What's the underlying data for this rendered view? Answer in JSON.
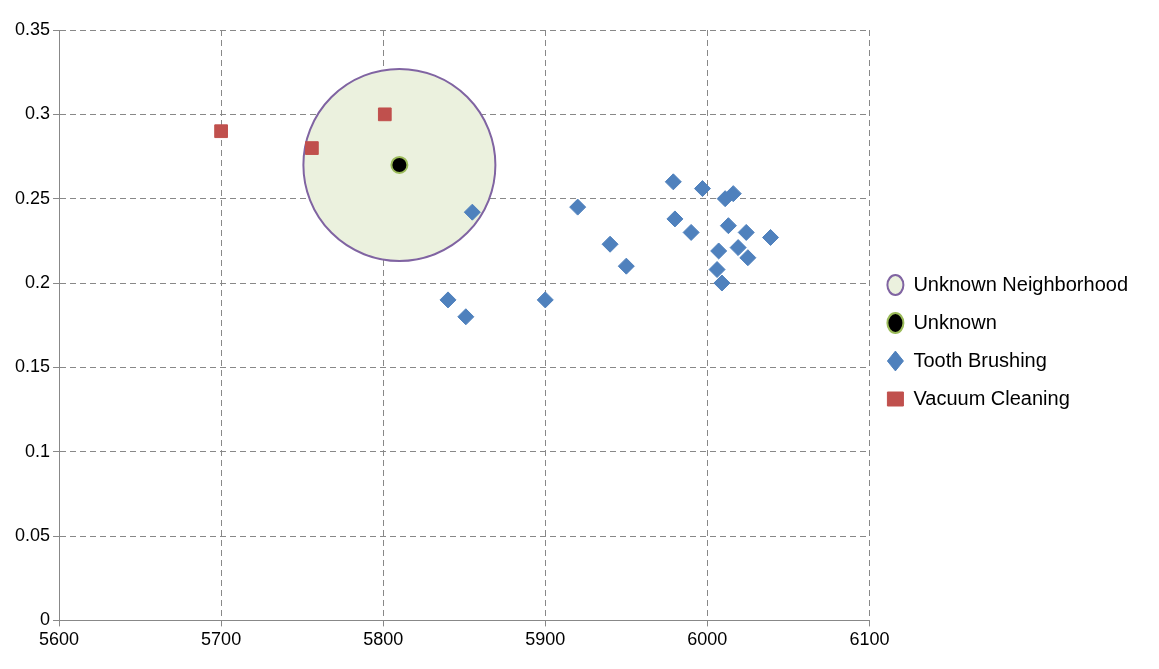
{
  "chart_data": {
    "type": "scatter",
    "xlim": [
      5600,
      6100
    ],
    "xticks": [
      5600,
      5700,
      5800,
      5900,
      6000,
      6100
    ],
    "ylim": [
      0,
      0.35
    ],
    "yticks": [
      0,
      0.05,
      0.1,
      0.15,
      0.2,
      0.25,
      0.3,
      0.35
    ],
    "grid": true,
    "legend": "right",
    "series": [
      {
        "name": "Unknown Neighborhood",
        "type": "bubble",
        "color": "#ebf1de",
        "x": [
          5810
        ],
        "values": [
          0.27
        ],
        "sizes": [
          1
        ],
        "marker": "circle"
      },
      {
        "name": "Unknown",
        "color": "#000000",
        "x": [
          5810
        ],
        "values": [
          0.27
        ],
        "marker": "circle"
      },
      {
        "name": "Tooth Brushing",
        "color": "#4f81bd",
        "x": [
          5855,
          5840,
          5851,
          5900,
          5920,
          5940,
          5950,
          5979,
          5980,
          5990,
          5997,
          6011,
          6016,
          6013,
          6024,
          6039,
          6007,
          6006,
          6009,
          6019,
          6025
        ],
        "values": [
          0.242,
          0.19,
          0.18,
          0.19,
          0.245,
          0.223,
          0.21,
          0.26,
          0.238,
          0.23,
          0.256,
          0.25,
          0.253,
          0.234,
          0.23,
          0.227,
          0.219,
          0.208,
          0.2,
          0.221,
          0.215
        ],
        "marker": "diamond"
      },
      {
        "name": "Vacuum Cleaning",
        "color": "#c0504d",
        "x": [
          5700,
          5756,
          5801
        ],
        "values": [
          0.29,
          0.28,
          0.3
        ],
        "marker": "square"
      }
    ]
  }
}
